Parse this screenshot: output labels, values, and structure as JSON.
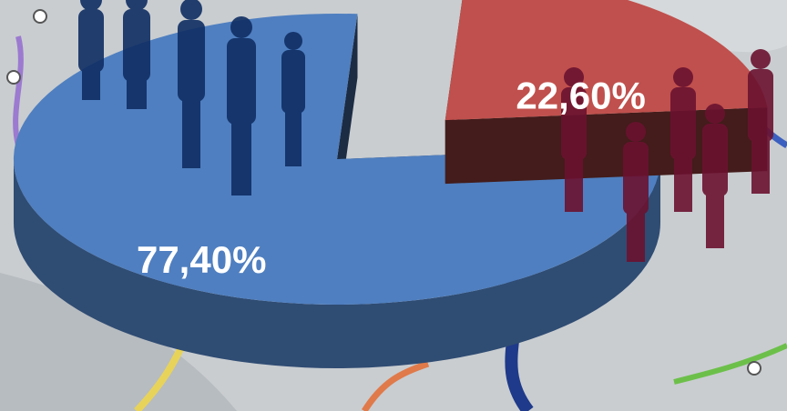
{
  "chart_data": {
    "type": "pie3d",
    "values": [
      77.4,
      22.6
    ],
    "value_labels": [
      "77,40%",
      "22,60%"
    ],
    "colors": [
      "#4f7fc0",
      "#c0504d"
    ],
    "exploded": [
      1
    ]
  }
}
